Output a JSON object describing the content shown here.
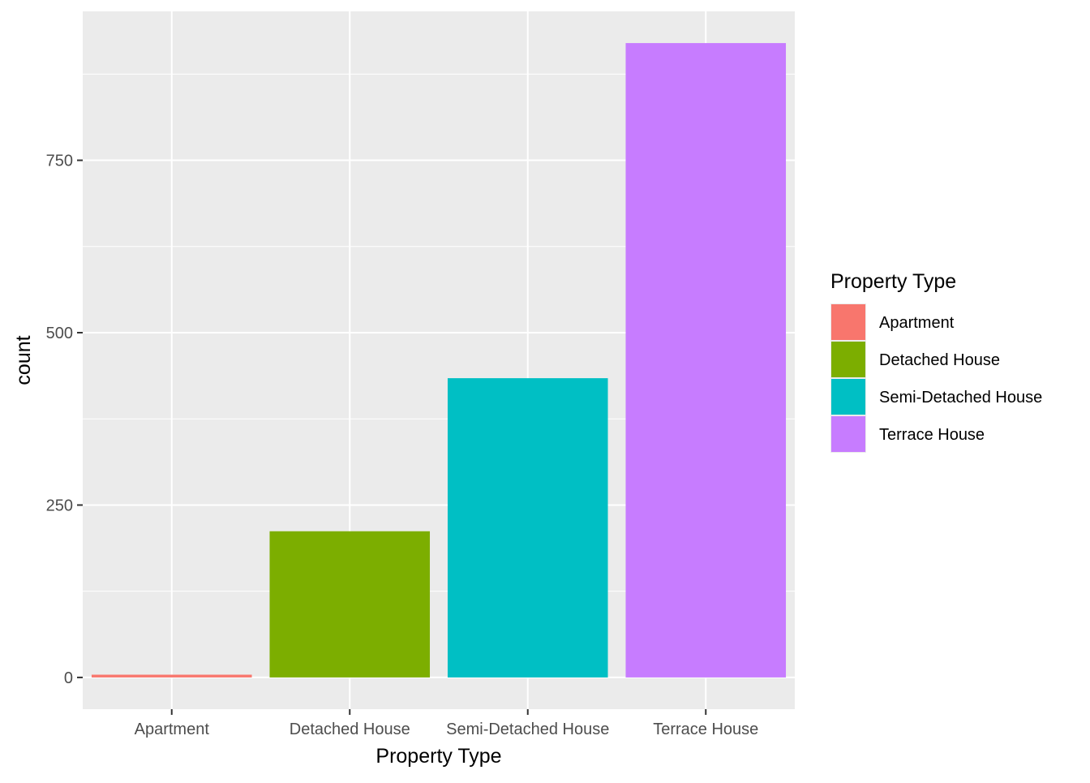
{
  "chart_data": {
    "type": "bar",
    "categories": [
      "Apartment",
      "Detached House",
      "Semi-Detached House",
      "Terrace House"
    ],
    "values": [
      4,
      212,
      434,
      920
    ],
    "xlabel": "Property Type",
    "ylabel": "count",
    "ylim": [
      -46,
      966
    ],
    "yticks": [
      0,
      250,
      500,
      750
    ],
    "yticks_minor": [
      125,
      375,
      625,
      875
    ],
    "grid": true,
    "legend": {
      "title": "Property Type",
      "position": "right",
      "entries": [
        "Apartment",
        "Detached House",
        "Semi-Detached House",
        "Terrace House"
      ]
    },
    "colors": [
      "#F8766D",
      "#7CAE00",
      "#00BFC4",
      "#C77CFF"
    ],
    "panel_background": "#EBEBEB",
    "grid_color": "#FFFFFF"
  }
}
